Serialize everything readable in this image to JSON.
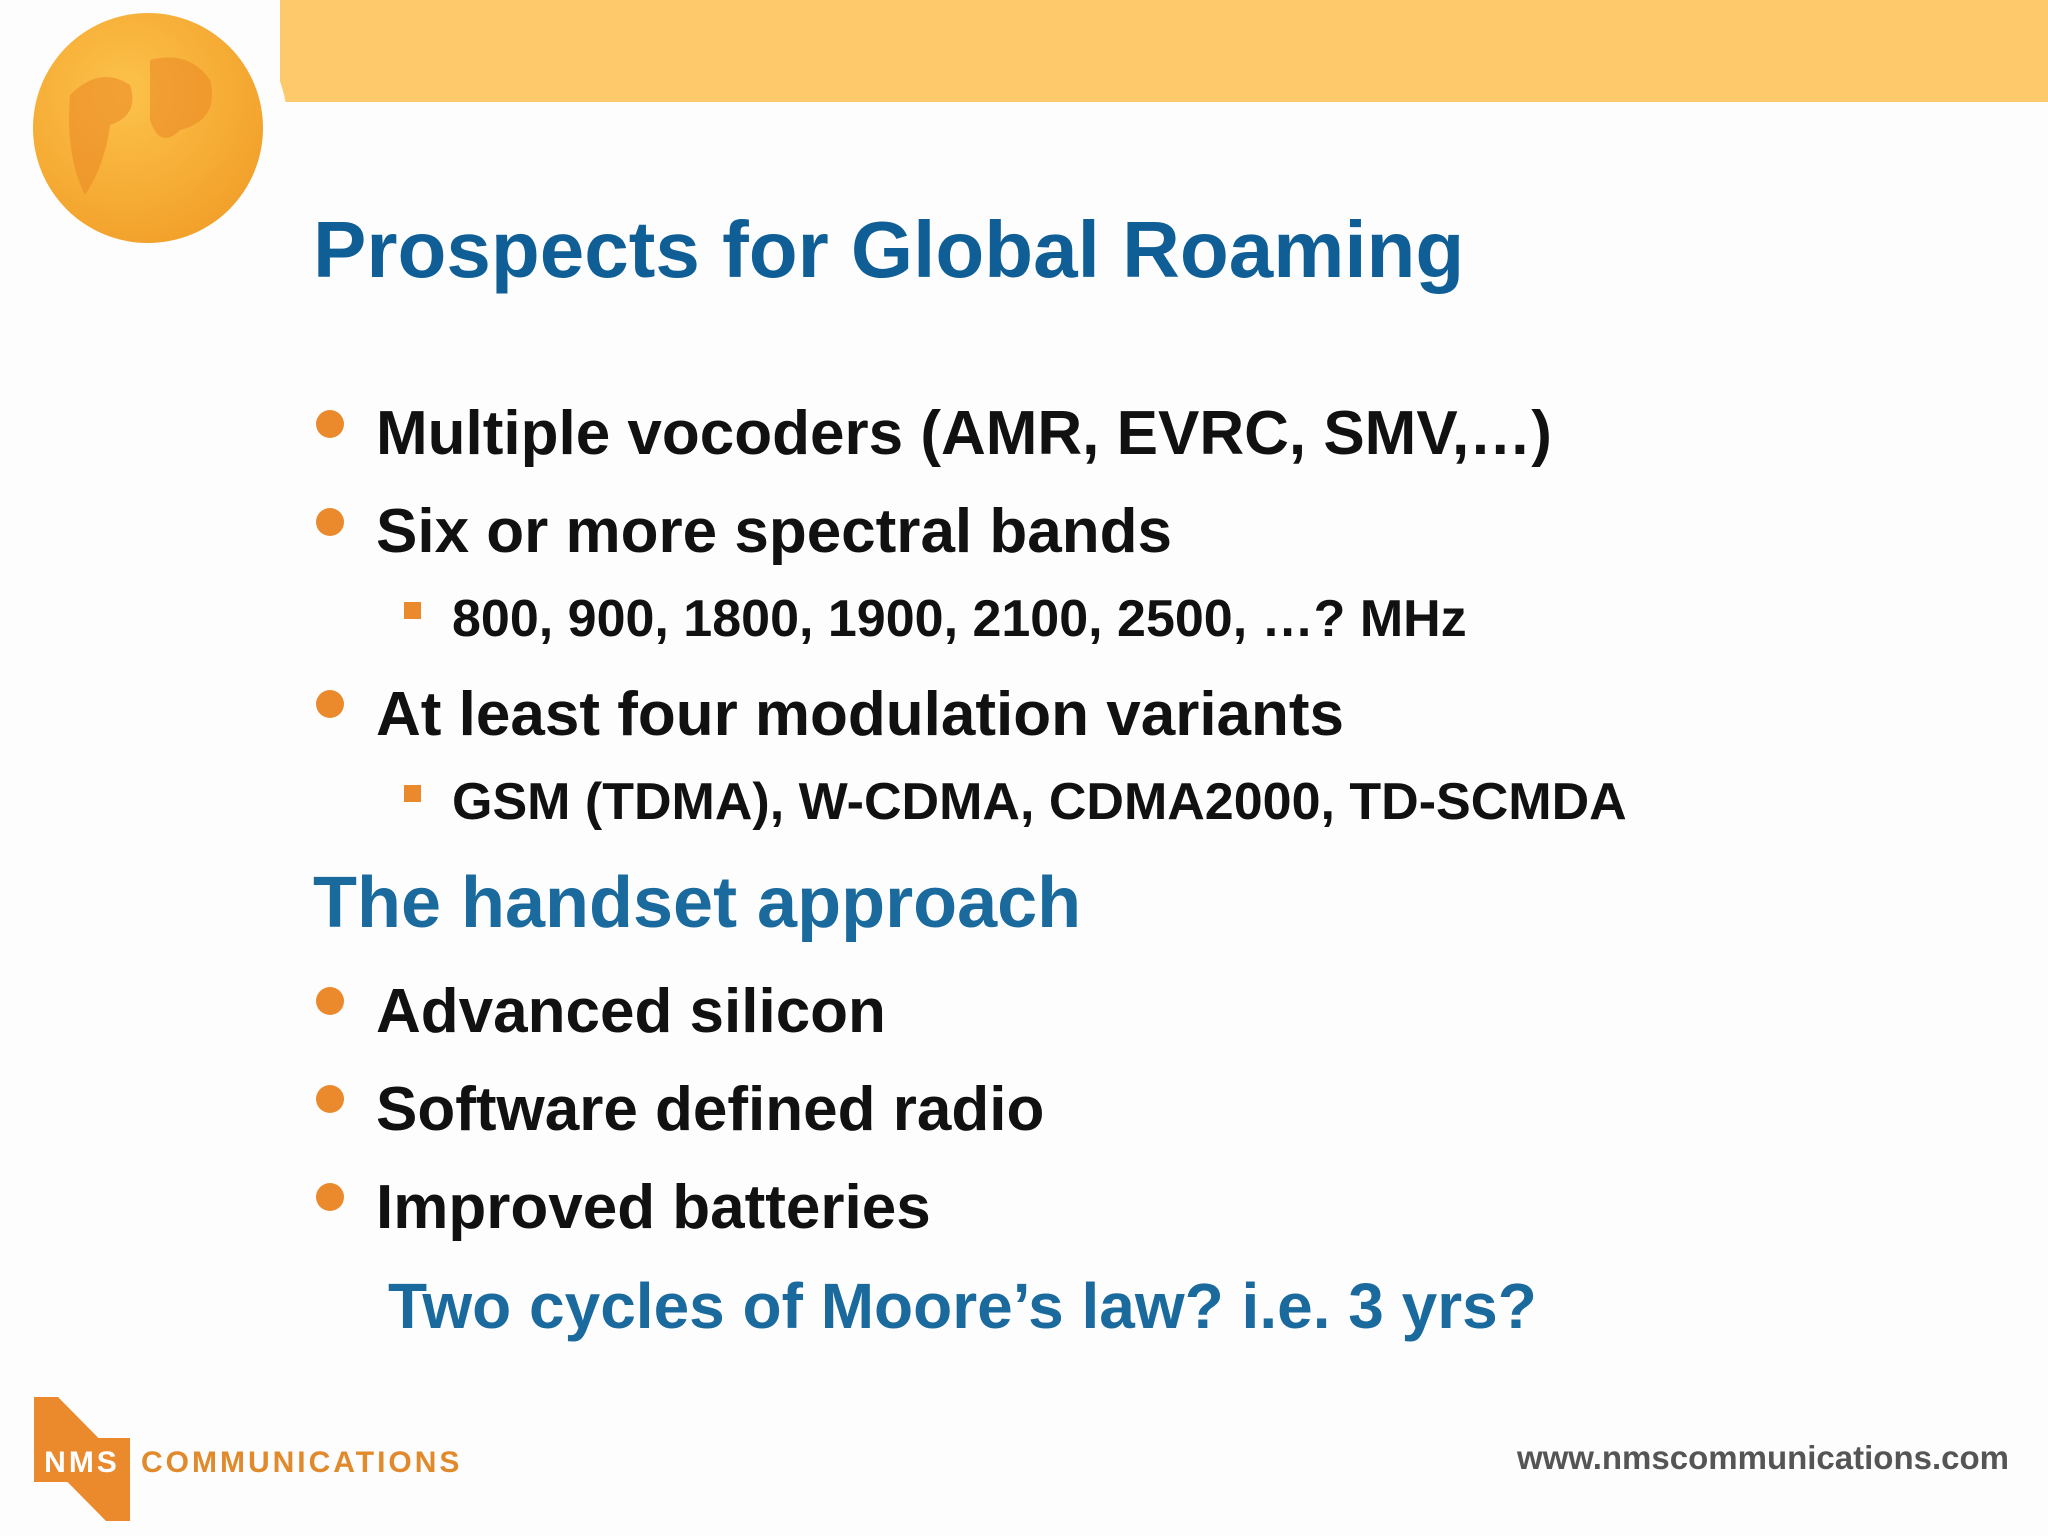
{
  "header": {
    "title": "Prospects for Global Roaming"
  },
  "body": {
    "bullets_1": [
      {
        "text": "Multiple vocoders (AMR, EVRC, SMV,…)",
        "sub": []
      },
      {
        "text": "Six or more spectral bands",
        "sub": [
          "800, 900, 1800, 1900, 2100, 2500, …? MHz"
        ]
      },
      {
        "text": "At least four modulation variants",
        "sub": [
          "GSM (TDMA), W-CDMA, CDMA2000, TD-SCMDA"
        ]
      }
    ],
    "heading": "The handset approach",
    "bullets_2": [
      "Advanced silicon",
      "Software defined radio",
      "Improved batteries"
    ],
    "note": "Two cycles of Moore’s law?  i.e. 3 yrs?"
  },
  "footer": {
    "logo": "NMS",
    "logo_text": "COMMUNICATIONS",
    "url": "www.nmscommunications.com"
  }
}
